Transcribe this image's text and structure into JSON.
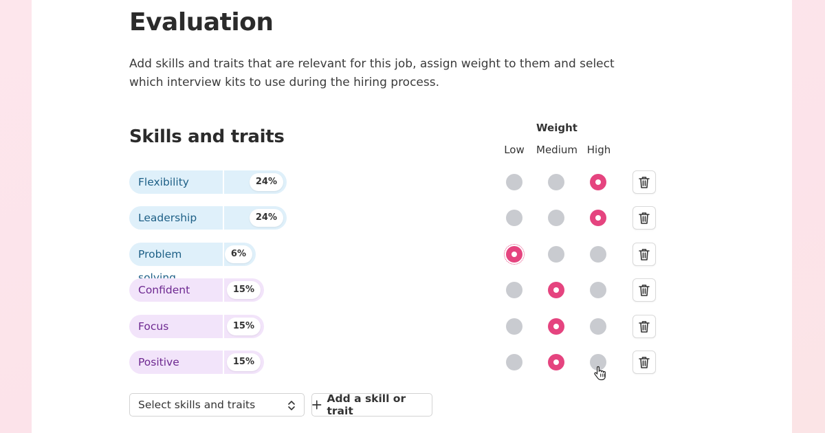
{
  "page": {
    "title": "Evaluation",
    "description": "Add skills and traits that are relevant for this job, assign weight to them and select which interview kits to use during the hiring process."
  },
  "skills_section": {
    "title": "Skills and traits",
    "weight_header": "Weight",
    "weight_levels": [
      "Low",
      "Medium",
      "High"
    ]
  },
  "skills": [
    {
      "name": "Flexibility",
      "percent": "24%",
      "share": 0.24,
      "color": "#dff0fa",
      "weight": "High"
    },
    {
      "name": "Leadership",
      "percent": "24%",
      "share": 0.24,
      "color": "#dff0fa",
      "weight": "High"
    },
    {
      "name": "Problem solving",
      "percent": "6%",
      "share": 0.06,
      "color": "#dff0fa",
      "weight": "Low"
    },
    {
      "name": "Confident",
      "percent": "15%",
      "share": 0.15,
      "color": "#f2e4fa",
      "weight": "Medium"
    },
    {
      "name": "Focus",
      "percent": "15%",
      "share": 0.15,
      "color": "#f2e4fa",
      "weight": "Medium"
    },
    {
      "name": "Positive",
      "percent": "15%",
      "share": 0.15,
      "color": "#f2e4fa",
      "weight": "Medium"
    }
  ],
  "controls": {
    "select_label": "Select skills and traits",
    "add_label": "Add a skill or trait"
  },
  "colors": {
    "accent": "#e5447f",
    "radio_off": "#c9cbd0"
  },
  "icons": [
    "trash-icon",
    "plus-icon",
    "chevron-updown-icon",
    "hand-pointer-icon"
  ]
}
